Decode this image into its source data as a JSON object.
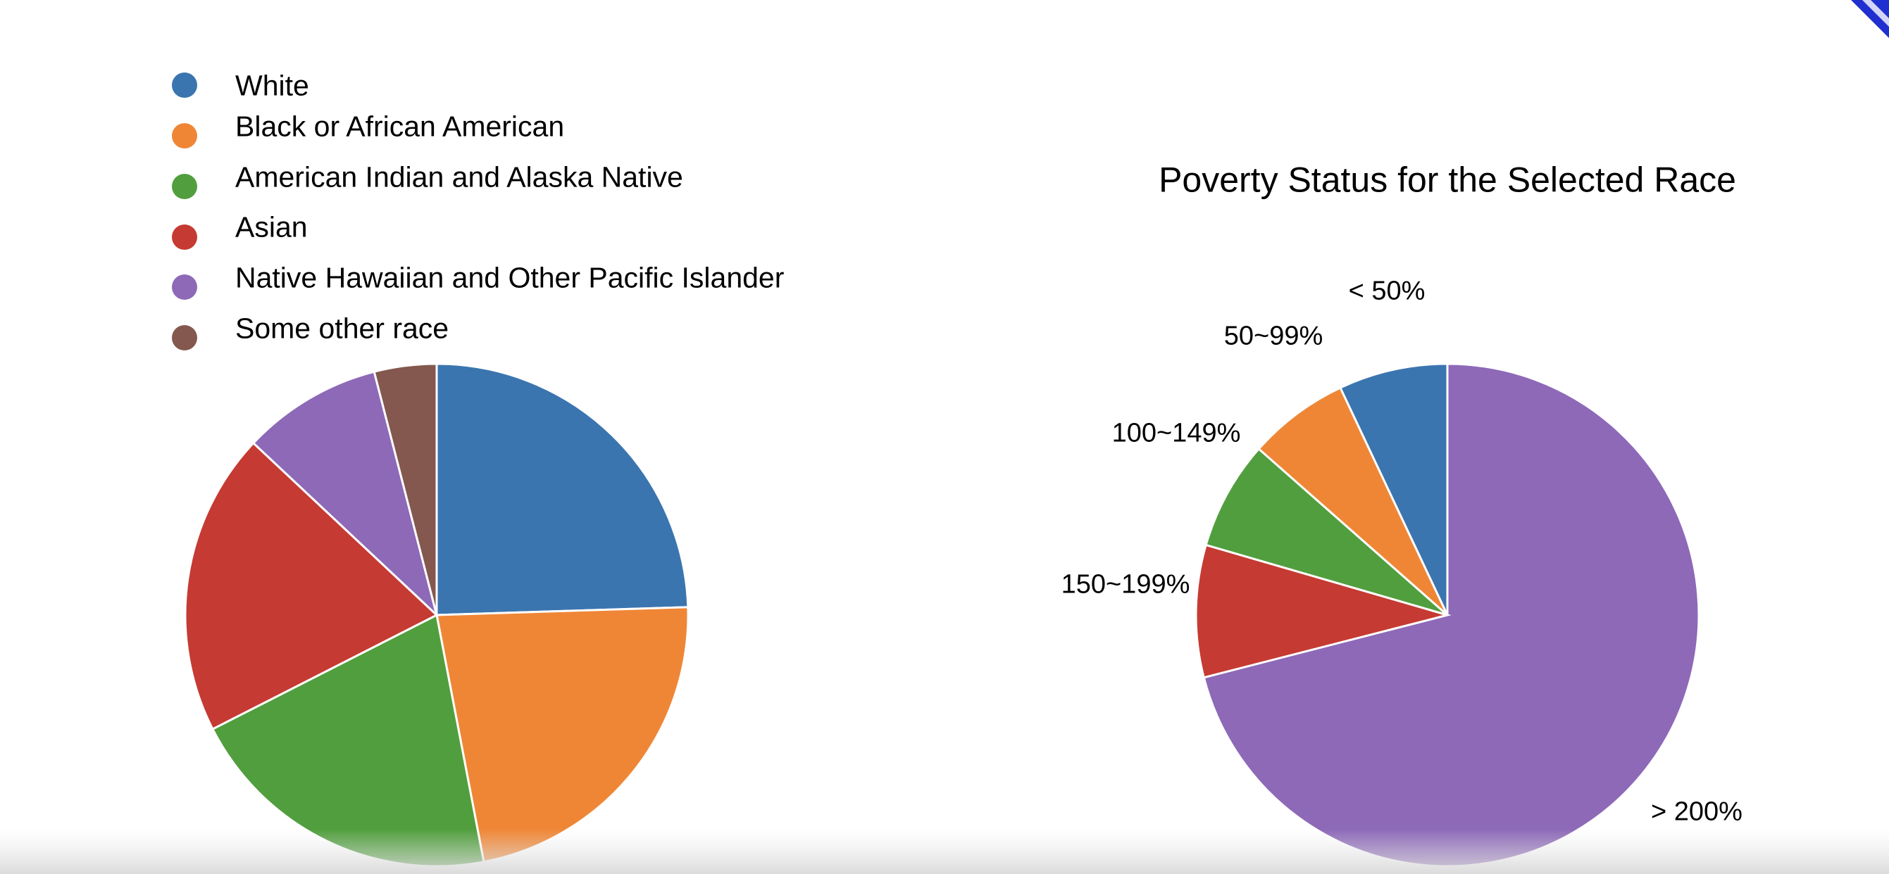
{
  "colors": {
    "background": "#ffffff",
    "slice_stroke": "#ffffff",
    "corner_ribbon": "#1f2fd0"
  },
  "chart_data": [
    {
      "type": "pie",
      "title": "",
      "legend_position": "top-left",
      "series": [
        {
          "name": "White",
          "value": 24.5,
          "color": "#3b75af"
        },
        {
          "name": "Black or African American",
          "value": 22.5,
          "color": "#ef8636"
        },
        {
          "name": "American Indian and Alaska Native",
          "value": 20.5,
          "color": "#519e3e"
        },
        {
          "name": "Asian",
          "value": 19.5,
          "color": "#c53a32"
        },
        {
          "name": "Native Hawaiian and Other Pacific Islander",
          "value": 9.0,
          "color": "#8d69b8"
        },
        {
          "name": "Some other race",
          "value": 4.0,
          "color": "#84584e"
        }
      ]
    },
    {
      "type": "pie",
      "title": "Poverty Status for the Selected Race",
      "series": [
        {
          "name": "> 200%",
          "value": 71.0,
          "color": "#8d69b8"
        },
        {
          "name": "150~199%",
          "value": 8.5,
          "color": "#c53a32"
        },
        {
          "name": "100~149%",
          "value": 7.0,
          "color": "#519e3e"
        },
        {
          "name": "50~99%",
          "value": 6.5,
          "color": "#ef8636"
        },
        {
          "name": "< 50%",
          "value": 7.0,
          "color": "#3b75af"
        }
      ]
    }
  ]
}
